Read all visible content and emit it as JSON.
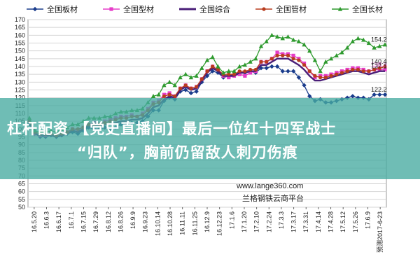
{
  "banner": {
    "line1": "杠杆配资 【党史直播间】最后一位红十四军战士",
    "line2": "“归队”，胸前仍留敌人刺刀伤痕"
  },
  "watermarks": {
    "site": "www.lange360.com",
    "company": "兰格钢铁云商平台",
    "forecast_label": "预测2017-6-23"
  },
  "chart_data": {
    "type": "line",
    "title": "",
    "xlabel": "",
    "ylabel": "",
    "ylim": [
      50,
      170
    ],
    "yticks": [
      50,
      55,
      60,
      65,
      70,
      75,
      80,
      85,
      90,
      95,
      100,
      105,
      110,
      115,
      120,
      125,
      130,
      135,
      140,
      145,
      150,
      155,
      160,
      165,
      170
    ],
    "grid": true,
    "legend_position": "top",
    "x_ticks": [
      "16.5.20",
      "16.6.3",
      "16.6.17",
      "16.7.1",
      "16.7.15",
      "16.7.29",
      "16.8.12",
      "16.8.26",
      "16.9.9",
      "16.9.23",
      "16.10.14",
      "16.10.28",
      "16.11.11",
      "16.11.25",
      "16.12.9",
      "16.12.23",
      "17.1.6",
      "17.1.20",
      "17.2.10",
      "17.2.24",
      "17.3.3",
      "17.3.17",
      "17.3.31",
      "17.4.14",
      "17.4.28",
      "17.5.12",
      "17.5.26",
      "17.6.9",
      "预测2017-6-23"
    ],
    "series": [
      {
        "name": "全国板材",
        "color": "#1a3c8c",
        "marker": "diamond",
        "values": [
          103,
          97,
          95,
          95,
          96,
          95,
          96,
          97,
          98,
          97,
          99,
          101,
          100,
          100,
          101,
          100,
          101,
          103,
          103,
          104,
          104,
          105,
          108,
          112,
          112,
          118,
          120,
          119,
          124,
          125,
          123,
          124,
          130,
          134,
          137,
          136,
          133,
          134,
          135,
          136,
          136,
          137,
          136,
          139,
          139,
          140,
          140,
          137,
          137,
          137,
          133,
          128,
          121,
          118,
          119,
          117,
          117,
          118,
          119,
          120,
          121,
          120,
          120,
          119,
          122,
          122,
          122
        ],
        "end_label": "122.2"
      },
      {
        "name": "全国型材",
        "color": "#e63cc8",
        "marker": "square",
        "values": [
          105,
          97,
          96,
          96,
          97,
          96,
          97,
          98,
          100,
          99,
          101,
          103,
          104,
          103,
          105,
          106,
          107,
          108,
          108,
          109,
          108,
          110,
          113,
          117,
          118,
          122,
          123,
          121,
          126,
          128,
          126,
          127,
          132,
          137,
          140,
          138,
          134,
          133,
          134,
          135,
          134,
          136,
          137,
          143,
          143,
          145,
          149,
          148,
          148,
          147,
          145,
          142,
          137,
          133,
          134,
          134,
          135,
          136,
          137,
          138,
          139,
          139,
          138,
          137,
          138,
          138,
          138
        ],
        "end_label": "138.3"
      },
      {
        "name": "全国综合",
        "color": "#4a1e78",
        "marker": "none",
        "values": [
          104,
          97,
          96,
          96,
          96,
          95,
          96,
          97,
          99,
          98,
          100,
          102,
          102,
          102,
          103,
          103,
          104,
          105,
          105,
          106,
          106,
          107,
          110,
          114,
          115,
          119,
          121,
          120,
          125,
          127,
          125,
          126,
          131,
          136,
          139,
          137,
          134,
          134,
          134,
          136,
          136,
          137,
          137,
          141,
          141,
          143,
          145,
          145,
          145,
          143,
          141,
          138,
          134,
          131,
          131,
          132,
          133,
          134,
          135,
          136,
          137,
          137,
          136,
          135,
          136,
          137,
          137
        ],
        "end_label": "137.1"
      },
      {
        "name": "全国管材",
        "color": "#b83c1e",
        "marker": "circle",
        "values": [
          105,
          98,
          97,
          97,
          97,
          96,
          97,
          98,
          100,
          100,
          101,
          103,
          103,
          103,
          104,
          105,
          106,
          107,
          107,
          108,
          108,
          109,
          112,
          116,
          117,
          121,
          122,
          121,
          126,
          128,
          126,
          127,
          132,
          137,
          140,
          138,
          135,
          135,
          135,
          137,
          137,
          138,
          138,
          143,
          143,
          145,
          147,
          147,
          147,
          145,
          144,
          141,
          137,
          134,
          133,
          133,
          134,
          135,
          136,
          137,
          138,
          138,
          137,
          137,
          138,
          139,
          140
        ],
        "end_label": "140.4"
      },
      {
        "name": "全国长材",
        "color": "#2e9a2e",
        "marker": "triangle",
        "values": [
          107,
          99,
          98,
          98,
          99,
          98,
          100,
          101,
          103,
          103,
          105,
          107,
          107,
          107,
          108,
          108,
          110,
          111,
          111,
          112,
          112,
          113,
          117,
          121,
          122,
          128,
          130,
          128,
          133,
          135,
          133,
          134,
          139,
          144,
          146,
          140,
          136,
          137,
          137,
          140,
          141,
          143,
          145,
          153,
          156,
          160,
          159,
          158,
          159,
          157,
          156,
          154,
          150,
          144,
          137,
          143,
          145,
          147,
          149,
          152,
          156,
          158,
          157,
          155,
          152,
          153,
          154
        ],
        "end_label": "154.2"
      }
    ]
  }
}
